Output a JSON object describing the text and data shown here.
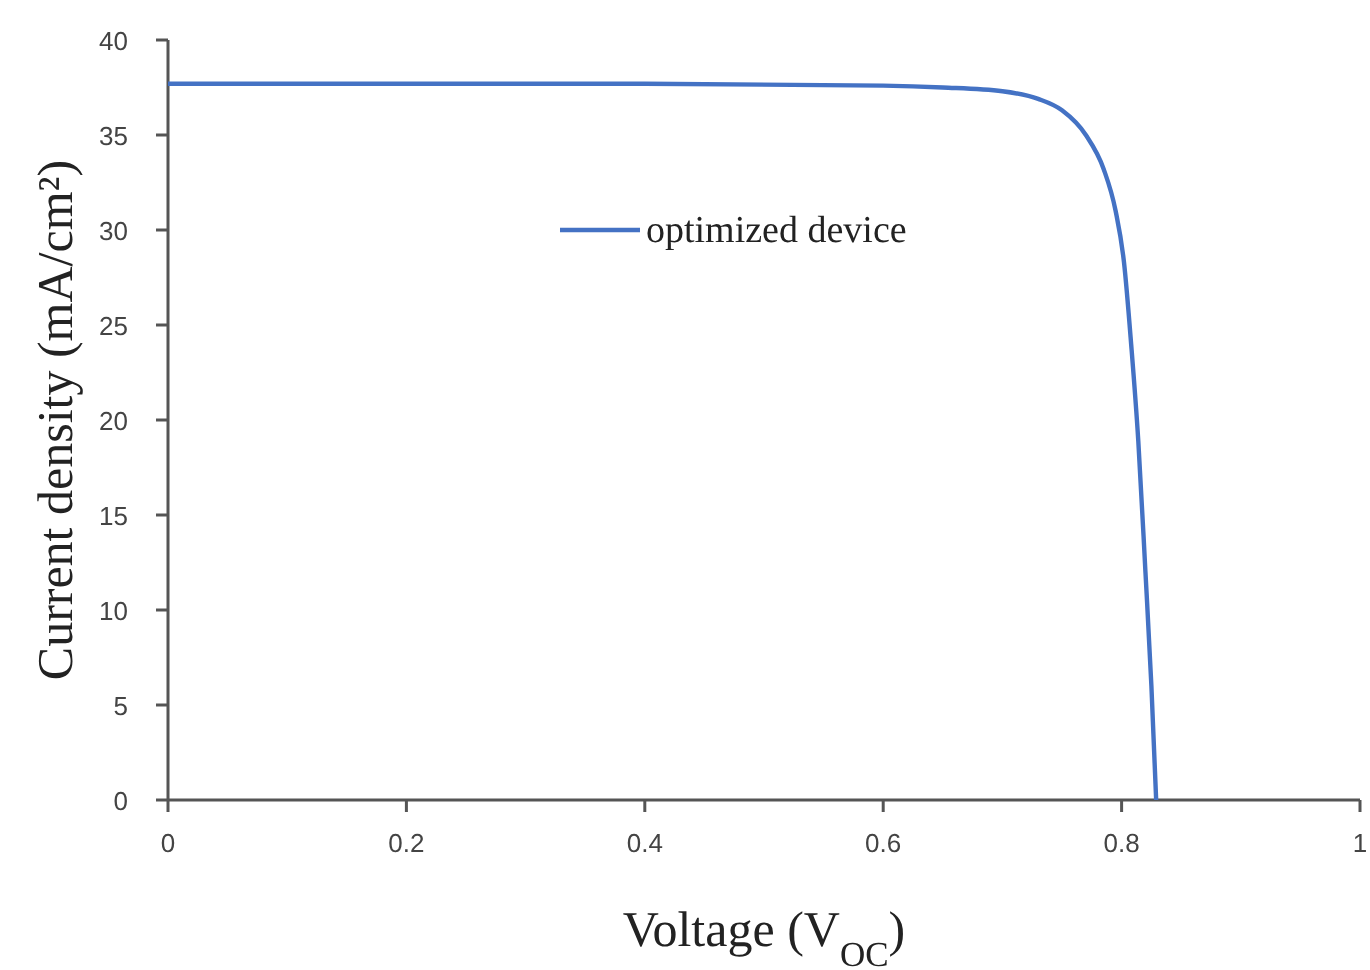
{
  "chart_data": {
    "type": "line",
    "xlabel": "Voltage (V$_{OC}$)",
    "ylabel": "Current density (mA/cm²)",
    "xlim": [
      0,
      1
    ],
    "xticks": [
      0,
      0.2,
      0.4,
      0.6,
      0.8,
      1
    ],
    "ylim": [
      0,
      40
    ],
    "yticks": [
      0,
      5,
      10,
      15,
      20,
      25,
      30,
      35,
      40
    ],
    "grid": false,
    "legend": "top",
    "marker": "none",
    "line_style": "solid",
    "series": [
      {
        "name": "optimized device",
        "color": "#4472c4",
        "x": [
          0,
          0.2,
          0.4,
          0.6,
          0.65,
          0.7,
          0.73,
          0.75,
          0.77,
          0.785,
          0.795,
          0.802,
          0.808,
          0.814,
          0.82,
          0.825,
          0.829
        ],
        "values": [
          37.7,
          37.7,
          37.7,
          37.6,
          37.5,
          37.3,
          36.9,
          36.3,
          35.0,
          33.2,
          31.0,
          28.3,
          24,
          18.9,
          12,
          6,
          0
        ]
      }
    ]
  }
}
